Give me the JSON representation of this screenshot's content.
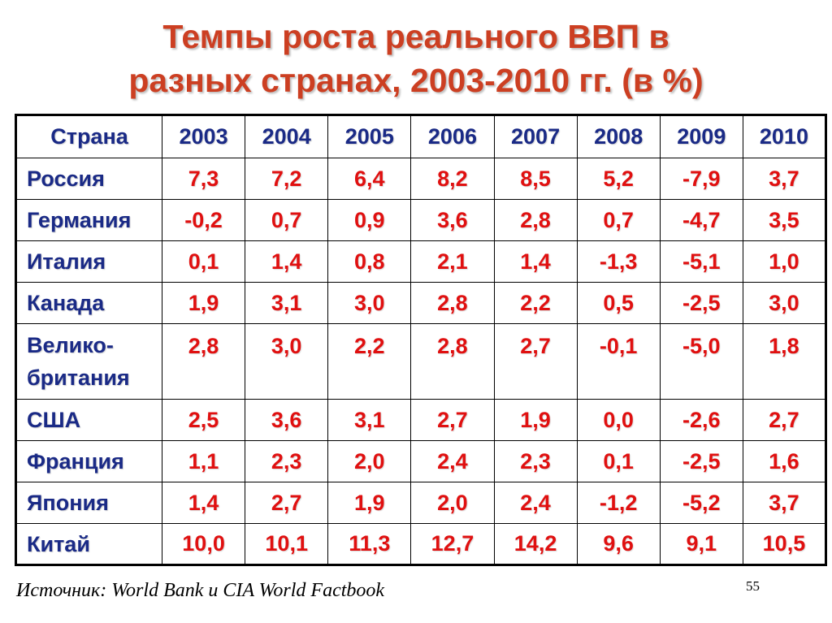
{
  "title": {
    "line1": "Темпы роста реального ВВП в",
    "line2": "разных странах, 2003-2010 гг. (в %)"
  },
  "table": {
    "header": [
      "Страна",
      "2003",
      "2004",
      "2005",
      "2006",
      "2007",
      "2008",
      "2009",
      "2010"
    ],
    "rows": [
      {
        "country": "Россия",
        "values": [
          "7,3",
          "7,2",
          "6,4",
          "8,2",
          "8,5",
          "5,2",
          "-7,9",
          "3,7"
        ]
      },
      {
        "country": "Германия",
        "values": [
          "-0,2",
          "0,7",
          "0,9",
          "3,6",
          "2,8",
          "0,7",
          "-4,7",
          "3,5"
        ]
      },
      {
        "country": "Италия",
        "values": [
          "0,1",
          "1,4",
          "0,8",
          "2,1",
          "1,4",
          "-1,3",
          "-5,1",
          "1,0"
        ]
      },
      {
        "country": "Канада",
        "values": [
          "1,9",
          "3,1",
          "3,0",
          "2,8",
          "2,2",
          "0,5",
          "-2,5",
          "3,0"
        ]
      },
      {
        "country": "Велико-британия",
        "values": [
          "2,8",
          "3,0",
          "2,2",
          "2,8",
          "2,7",
          "-0,1",
          "-5,0",
          "1,8"
        ]
      },
      {
        "country": "США",
        "values": [
          "2,5",
          "3,6",
          "3,1",
          "2,7",
          "1,9",
          "0,0",
          "-2,6",
          "2,7"
        ]
      },
      {
        "country": "Франция",
        "values": [
          "1,1",
          "2,3",
          "2,0",
          "2,4",
          "2,3",
          "0,1",
          "-2,5",
          "1,6"
        ]
      },
      {
        "country": "Япония",
        "values": [
          "1,4",
          "2,7",
          "1,9",
          "2,0",
          "2,4",
          "-1,2",
          "-5,2",
          "3,7"
        ]
      },
      {
        "country": "Китай",
        "values": [
          "10,0",
          "10,1",
          "11,3",
          "12,7",
          "14,2",
          "9,6",
          "9,1",
          "10,5"
        ]
      }
    ]
  },
  "source": "Источник: World Bank и CIA World Factbook",
  "page_number": "55",
  "colors": {
    "title": "#cc3f22",
    "header_text": "#1a2a86",
    "value_text": "#e01010"
  }
}
